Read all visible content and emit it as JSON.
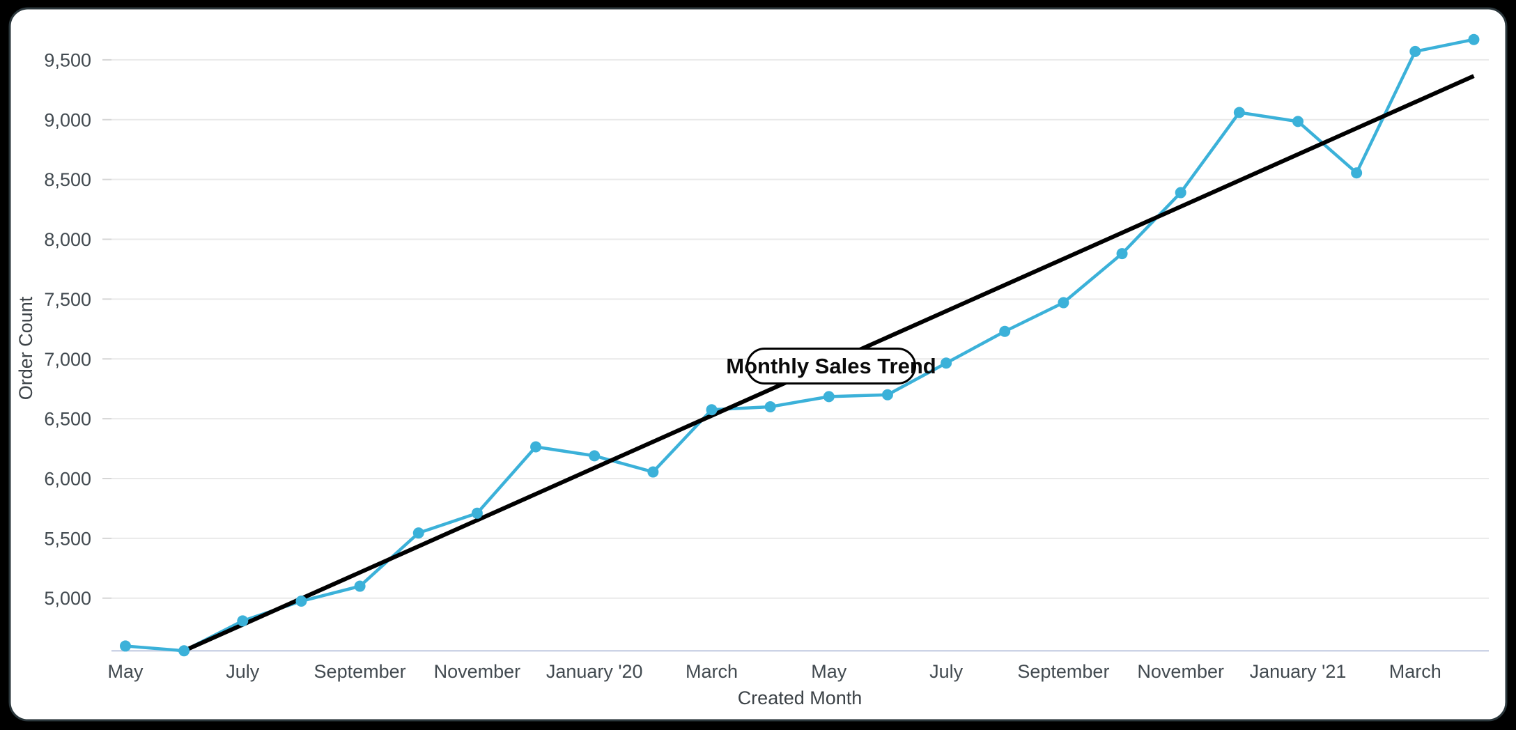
{
  "page": {
    "background": "#000000"
  },
  "card": {
    "background": "#ffffff",
    "border_color": "#2b373c",
    "border_radius": 26
  },
  "chart_data": {
    "type": "line",
    "title": "Monthly Sales Trend",
    "xlabel": "Created Month",
    "ylabel": "Order Count",
    "grid": true,
    "legend_position": "none",
    "categories": [
      "May 2019",
      "June 2019",
      "July 2019",
      "August 2019",
      "September 2019",
      "October 2019",
      "November 2019",
      "December 2019",
      "January 2020",
      "February 2020",
      "March 2020",
      "April 2020",
      "May 2020",
      "June 2020",
      "July 2020",
      "August 2020",
      "September 2020",
      "October 2020",
      "November 2020",
      "December 2020",
      "January 2021",
      "February 2021",
      "March 2021",
      "April 2021"
    ],
    "series": [
      {
        "name": "Order Count",
        "color": "#3bb1d9",
        "values": [
          4600,
          4560,
          4810,
          4975,
          5100,
          5545,
          5710,
          6265,
          6190,
          6055,
          6575,
          6600,
          6685,
          6700,
          6965,
          7230,
          7470,
          7880,
          8390,
          9060,
          8985,
          8555,
          9570,
          9670
        ]
      }
    ],
    "trendline": {
      "label": "Monthly Sales Trend",
      "color": "#000000",
      "start_category": "June 2019",
      "start_value": 4560,
      "end_category": "April 2021",
      "end_value": 9365
    },
    "x_tick_labels": [
      "May",
      "July",
      "September",
      "November",
      "January '20",
      "March",
      "May",
      "July",
      "September",
      "November",
      "January '21",
      "March"
    ],
    "y_tick_labels": [
      "5,000",
      "5,500",
      "6,000",
      "6,500",
      "7,000",
      "7,500",
      "8,000",
      "8,500",
      "9,000",
      "9,500"
    ],
    "y_ticks": [
      5000,
      5500,
      6000,
      6500,
      7000,
      7500,
      8000,
      8500,
      9000,
      9500
    ],
    "ylim": [
      4560,
      9770
    ],
    "colors": {
      "series": "#3bb1d9",
      "trendline": "#000000",
      "gridline": "#e9e9e9",
      "axis_line": "#ccd3e6",
      "tick_text": "#424a50",
      "axis_title_text": "#3c4247",
      "pill_fill": "#ffffff",
      "pill_border": "#000000"
    }
  }
}
